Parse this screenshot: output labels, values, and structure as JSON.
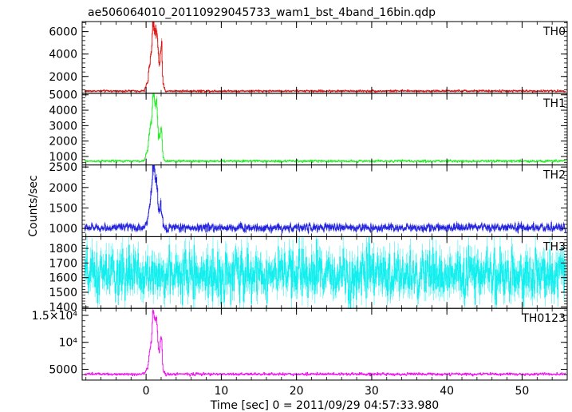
{
  "title": "ae506064010_20110929045733_wam1_bst_4band_16bin.qdp",
  "xlabel": "Time [sec] 0 = 2011/09/29 04:57:33.980",
  "ylabel": "Counts/sec",
  "chart_data": {
    "type": "line",
    "title": "ae506064010_20110929045733_wam1_bst_4band_16bin.qdp",
    "xlabel": "Time [sec] 0 = 2011/09/29 04:57:33.980",
    "ylabel": "Counts/sec",
    "xlim": [
      -8.5,
      56
    ],
    "xticks": [
      0,
      10,
      20,
      30,
      40,
      50
    ],
    "xtick_labels": [
      "0",
      "10",
      "20",
      "30",
      "40",
      "50"
    ],
    "legend": "none",
    "panels": [
      {
        "name": "TH0",
        "color": "#e01010",
        "ylim": [
          500,
          6900
        ],
        "yticks": [
          2000,
          4000,
          6000
        ],
        "ytick_labels": [
          "2000",
          "4000",
          "6000"
        ],
        "baseline": 700,
        "noise": 0.06,
        "burst": [
          [
            -0.2,
            900
          ],
          [
            0.2,
            1500
          ],
          [
            0.5,
            3500
          ],
          [
            0.7,
            4200
          ],
          [
            0.85,
            6600
          ],
          [
            1.0,
            6550
          ],
          [
            1.2,
            6100
          ],
          [
            1.4,
            6400
          ],
          [
            1.6,
            3700
          ],
          [
            1.75,
            3000
          ],
          [
            1.9,
            4600
          ],
          [
            2.05,
            4500
          ],
          [
            2.2,
            1400
          ],
          [
            2.5,
            750
          ]
        ]
      },
      {
        "name": "TH1",
        "color": "#22ee22",
        "ylim": [
          450,
          5100
        ],
        "yticks": [
          1000,
          2000,
          3000,
          4000,
          5000
        ],
        "ytick_labels": [
          "1000",
          "2000",
          "3000",
          "4000",
          "5000"
        ],
        "baseline": 700,
        "noise": 0.05,
        "burst": [
          [
            -0.2,
            850
          ],
          [
            0.2,
            1500
          ],
          [
            0.5,
            2900
          ],
          [
            0.7,
            3300
          ],
          [
            0.85,
            5000
          ],
          [
            1.0,
            4900
          ],
          [
            1.2,
            4300
          ],
          [
            1.4,
            4500
          ],
          [
            1.6,
            2400
          ],
          [
            1.75,
            2050
          ],
          [
            1.9,
            2850
          ],
          [
            2.05,
            2750
          ],
          [
            2.2,
            1000
          ],
          [
            2.5,
            720
          ]
        ]
      },
      {
        "name": "TH2",
        "color": "#2222dd",
        "ylim": [
          800,
          2550
        ],
        "yticks": [
          1000,
          1500,
          2000,
          2500
        ],
        "ytick_labels": [
          "1000",
          "1500",
          "2000",
          "2500"
        ],
        "baseline": 1020,
        "noise": 0.045,
        "burst": [
          [
            -0.2,
            1050
          ],
          [
            0.2,
            1200
          ],
          [
            0.5,
            1750
          ],
          [
            0.7,
            1900
          ],
          [
            0.85,
            2480
          ],
          [
            1.0,
            2450
          ],
          [
            1.2,
            2150
          ],
          [
            1.4,
            2200
          ],
          [
            1.6,
            1500
          ],
          [
            1.75,
            1350
          ],
          [
            1.9,
            1550
          ],
          [
            2.05,
            1450
          ],
          [
            2.2,
            1100
          ],
          [
            2.5,
            1020
          ]
        ]
      },
      {
        "name": "TH3",
        "color": "#11eeee",
        "ylim": [
          1390,
          1880
        ],
        "yticks": [
          1400,
          1500,
          1600,
          1700,
          1800
        ],
        "ytick_labels": [
          "1400",
          "1500",
          "1600",
          "1700",
          "1800"
        ],
        "baseline": 1620,
        "noise": 0.05,
        "burst": []
      },
      {
        "name": "TH0123",
        "color": "#ee11ee",
        "ylim": [
          3000,
          16300
        ],
        "yticks": [
          5000,
          10000,
          15000
        ],
        "ytick_labels": [
          "5000",
          "10⁴",
          "1.5×10⁴"
        ],
        "baseline": 4100,
        "noise": 0.03,
        "burst": [
          [
            -0.2,
            4400
          ],
          [
            0.2,
            5300
          ],
          [
            0.5,
            9000
          ],
          [
            0.7,
            10200
          ],
          [
            0.85,
            15400
          ],
          [
            1.0,
            15200
          ],
          [
            1.2,
            13900
          ],
          [
            1.4,
            14300
          ],
          [
            1.6,
            9100
          ],
          [
            1.75,
            8300
          ],
          [
            1.9,
            10800
          ],
          [
            2.05,
            10600
          ],
          [
            2.2,
            5000
          ],
          [
            2.5,
            4200
          ]
        ]
      }
    ]
  }
}
